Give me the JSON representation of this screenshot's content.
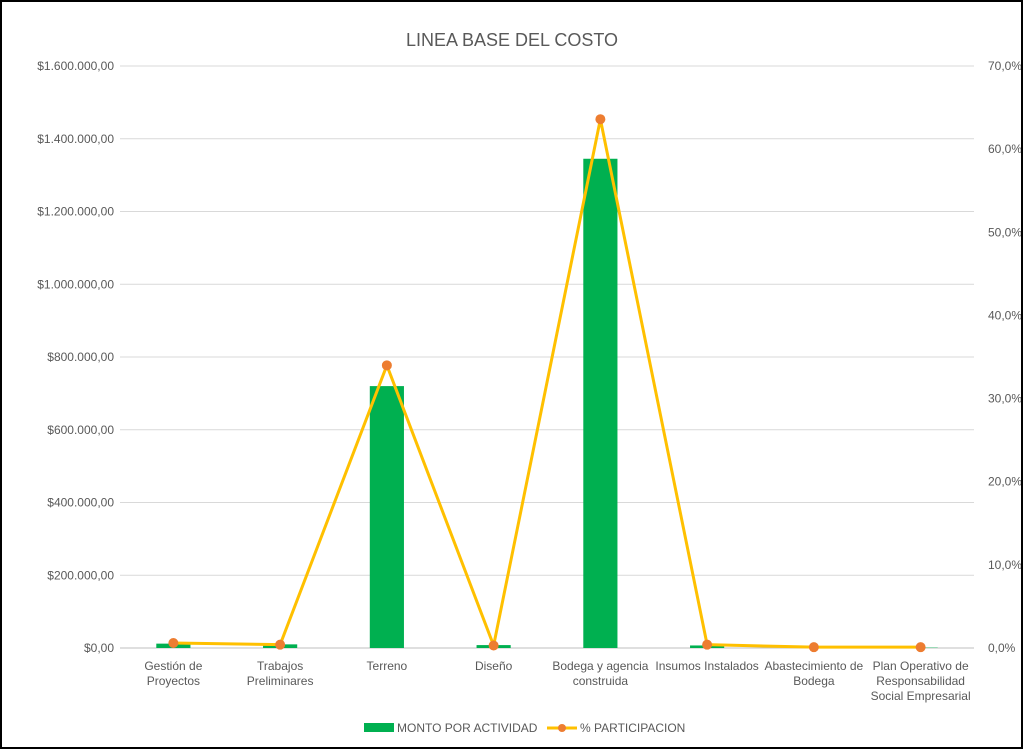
{
  "chart_data": {
    "type": "bar",
    "title": "LINEA BASE DEL COSTO",
    "xlabel": "",
    "ylabel": "",
    "categories": [
      [
        "Gestión de",
        "Proyectos"
      ],
      [
        "Trabajos",
        "Preliminares"
      ],
      [
        "Terreno"
      ],
      [
        "Diseño"
      ],
      [
        "Bodega y agencia",
        "construida"
      ],
      [
        "Insumos Instalados"
      ],
      [
        "Abastecimiento de",
        "Bodega"
      ],
      [
        "Plan Operativo de",
        "Responsabilidad",
        "Social Empresarial"
      ]
    ],
    "series": [
      {
        "name": "MONTO POR ACTIVIDAD",
        "type": "bar",
        "axis": "left",
        "color": "#00b050",
        "values": [
          12000,
          10000,
          720000,
          8000,
          1345000,
          7000,
          1500,
          1000
        ]
      },
      {
        "name": "% PARTICIPACION",
        "type": "line",
        "axis": "right",
        "color": "#ffc000",
        "marker_color": "#ed7d31",
        "values": [
          0.6,
          0.4,
          34.0,
          0.3,
          63.6,
          0.4,
          0.1,
          0.1
        ]
      }
    ],
    "ylim": [
      0,
      1600000
    ],
    "yticks": [
      "$0,00",
      "$200.000,00",
      "$400.000,00",
      "$600.000,00",
      "$800.000,00",
      "$1.000.000,00",
      "$1.200.000,00",
      "$1.400.000,00",
      "$1.600.000,00"
    ],
    "y2lim": [
      0,
      70
    ],
    "y2ticks": [
      "0,0%",
      "10,0%",
      "20,0%",
      "30,0%",
      "40,0%",
      "50,0%",
      "60,0%",
      "70,0%"
    ],
    "grid": true,
    "legend": "bottom"
  }
}
